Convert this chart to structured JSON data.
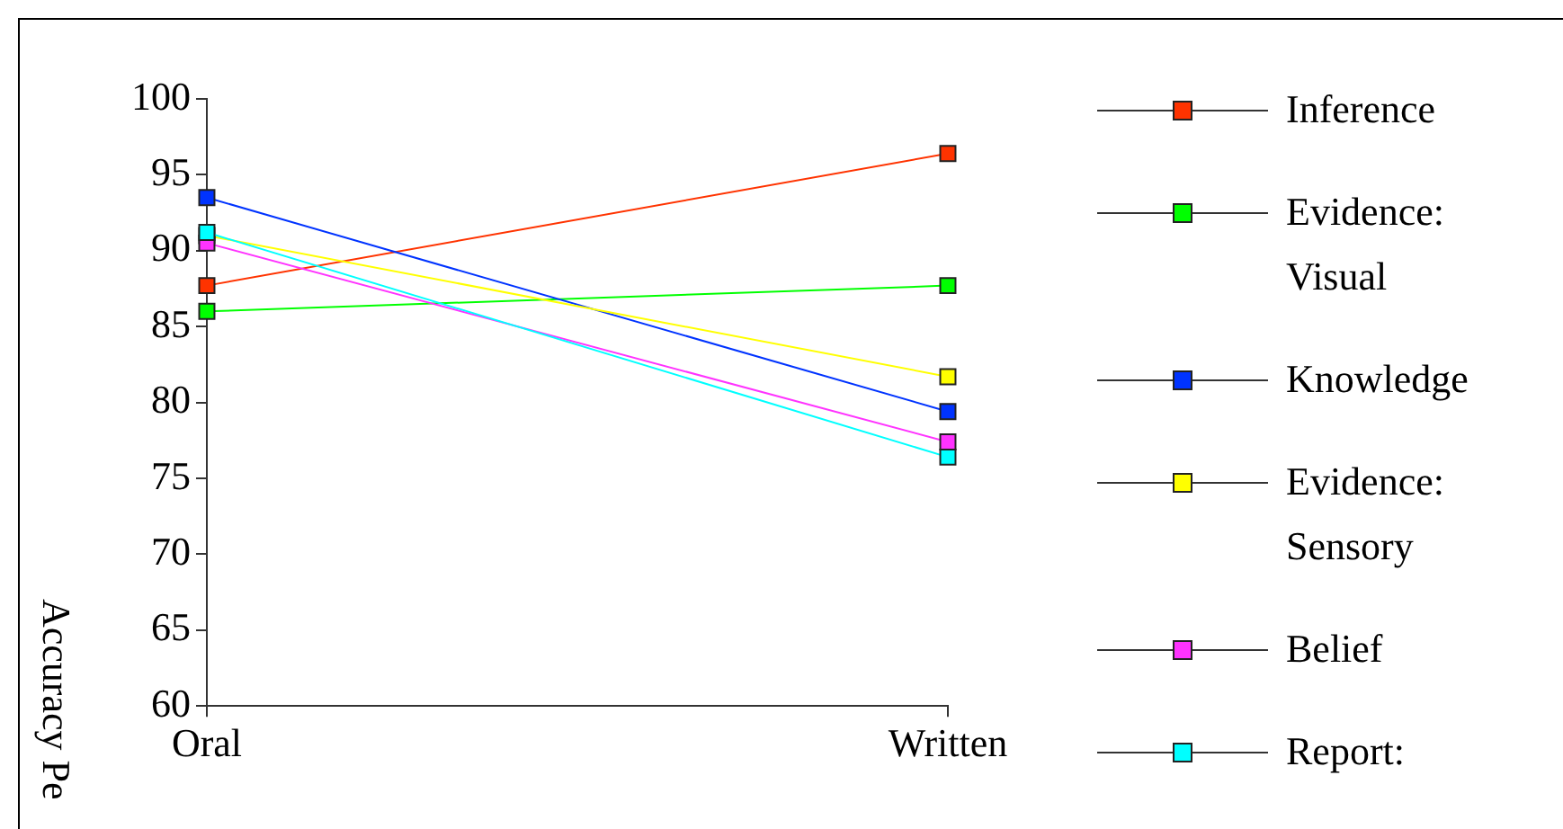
{
  "chart_data": {
    "type": "line",
    "ylabel": "Accuracy Pe",
    "categories": [
      "Oral",
      "Written"
    ],
    "series": [
      {
        "name": "Inference",
        "color": "#ff3300",
        "values": [
          87.7,
          96.4
        ]
      },
      {
        "name": "Evidence: Visual",
        "color": "#00ff00",
        "values": [
          86,
          87.7
        ]
      },
      {
        "name": "Knowledge",
        "color": "#0033ff",
        "values": [
          93.5,
          79.4
        ]
      },
      {
        "name": "Evidence: Sensory",
        "color": "#ffff00",
        "values": [
          91,
          81.7
        ]
      },
      {
        "name": "Belief",
        "color": "#ff33ff",
        "values": [
          90.5,
          77.4
        ]
      },
      {
        "name": "Report:",
        "color": "#00ffff",
        "values": [
          91.2,
          76.4
        ]
      }
    ],
    "ylim": [
      60,
      100
    ],
    "yticks": [
      60,
      65,
      70,
      75,
      80,
      85,
      90,
      95,
      100
    ],
    "grid": false,
    "legend": "right",
    "marker": "square",
    "line_style": "solid"
  }
}
